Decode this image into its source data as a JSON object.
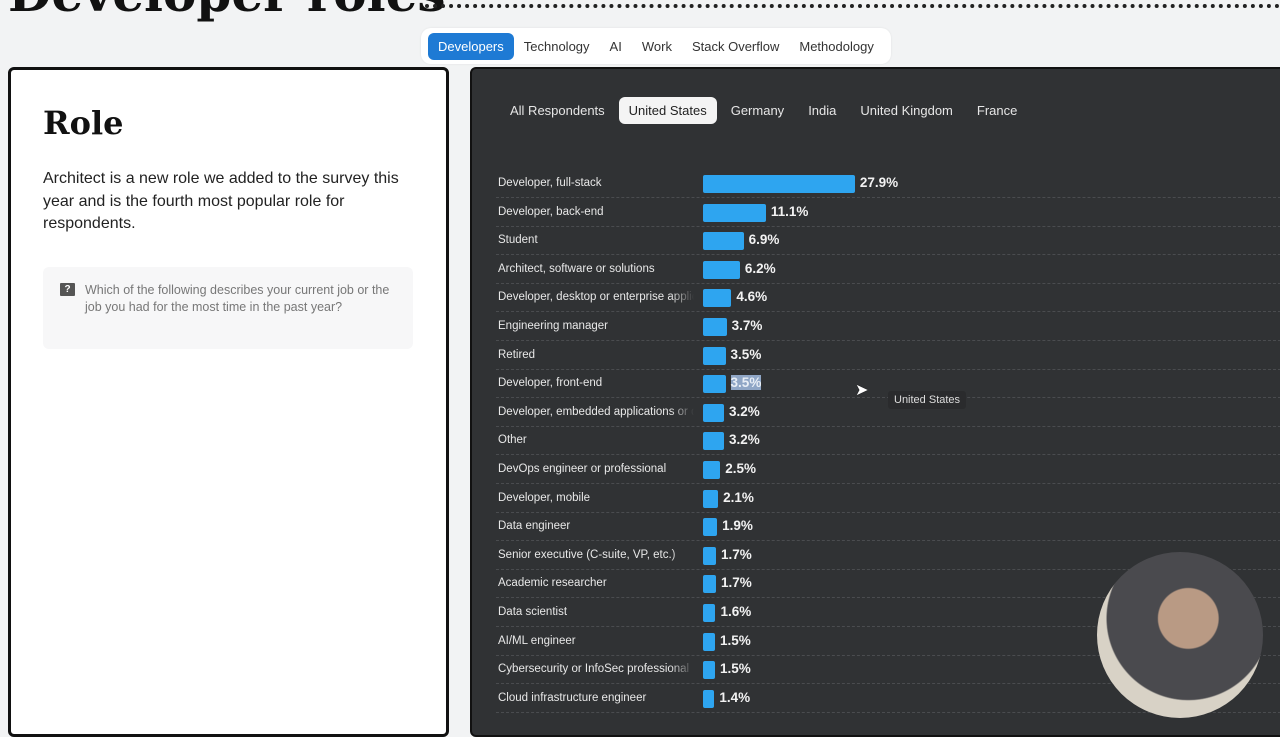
{
  "header": {
    "title": "Developer roles"
  },
  "topnav": {
    "items": [
      "Developers",
      "Technology",
      "AI",
      "Work",
      "Stack Overflow",
      "Methodology"
    ],
    "active": "Developers",
    "accent": "#1e7ad4"
  },
  "left": {
    "heading": "Role",
    "description": "Architect is a new role we added to the survey this year and is the fourth most popular role for respondents.",
    "question_icon": "question-bubble-icon",
    "question": "Which of the following describes your current job or the job you had for the most time in the past year?"
  },
  "country_tabs": {
    "items": [
      "All Respondents",
      "United States",
      "Germany",
      "India",
      "United Kingdom",
      "France"
    ],
    "active": "United States"
  },
  "tooltip": "United States",
  "chart_data": {
    "type": "bar",
    "orientation": "horizontal",
    "bar_color": "#2ea5f0",
    "categories": [
      "Developer, full-stack",
      "Developer, back-end",
      "Student",
      "Architect, software or solutions",
      "Developer, desktop or enterprise applications",
      "Engineering manager",
      "Retired",
      "Developer, front-end",
      "Developer, embedded applications or devices",
      "Other",
      "DevOps engineer or professional",
      "Developer, mobile",
      "Data engineer",
      "Senior executive (C-suite, VP, etc.)",
      "Academic researcher",
      "Data scientist",
      "AI/ML engineer",
      "Cybersecurity or InfoSec professional",
      "Cloud infrastructure engineer"
    ],
    "values": [
      27.9,
      11.1,
      6.9,
      6.2,
      4.6,
      3.7,
      3.5,
      3.5,
      3.2,
      3.2,
      2.5,
      2.1,
      1.9,
      1.7,
      1.7,
      1.6,
      1.5,
      1.5,
      1.4
    ],
    "labels": [
      "27.9%",
      "11.1%",
      "6.9%",
      "6.2%",
      "4.6%",
      "3.7%",
      "3.5%",
      "3.5%",
      "3.2%",
      "3.2%",
      "2.5%",
      "2.1%",
      "1.9%",
      "1.7%",
      "1.7%",
      "1.6%",
      "1.5%",
      "1.5%",
      "1.4%"
    ],
    "highlighted_label_index": 7
  }
}
